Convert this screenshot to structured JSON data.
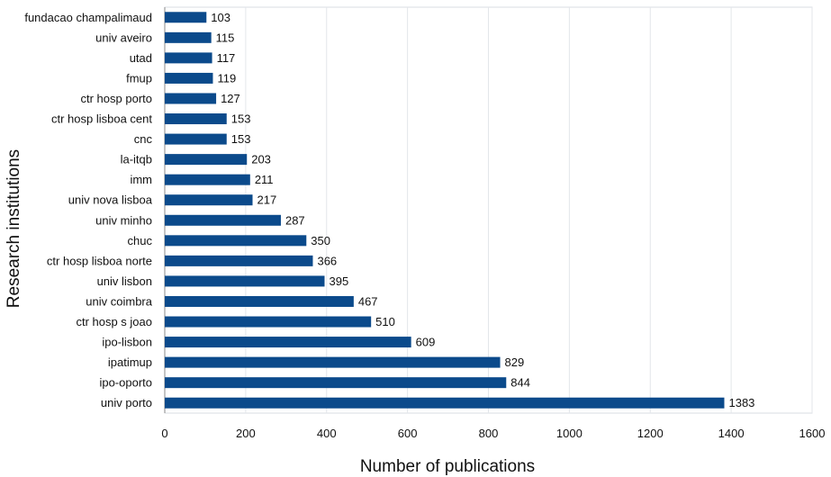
{
  "chart_data": {
    "type": "bar",
    "orientation": "horizontal",
    "categories": [
      "fundacao champalimaud",
      "univ aveiro",
      "utad",
      "fmup",
      "ctr hosp porto",
      "ctr hosp lisboa cent",
      "cnc",
      "la-itqb",
      "imm",
      "univ nova lisboa",
      "univ minho",
      "chuc",
      "ctr hosp lisboa norte",
      "univ lisbon",
      "univ coimbra",
      "ctr hosp s joao",
      "ipo-lisbon",
      "ipatimup",
      "ipo-oporto",
      "univ porto"
    ],
    "values": [
      103,
      115,
      117,
      119,
      127,
      153,
      153,
      203,
      211,
      217,
      287,
      350,
      366,
      395,
      467,
      510,
      609,
      829,
      844,
      1383
    ],
    "xlabel": "Number of publications",
    "ylabel": "Research institutions",
    "xlim": [
      0,
      1600
    ],
    "xticks": [
      0,
      200,
      400,
      600,
      800,
      1000,
      1200,
      1400,
      1600
    ],
    "grid": "vertical",
    "bar_color": "#0b4a8b",
    "data_labels": true
  }
}
